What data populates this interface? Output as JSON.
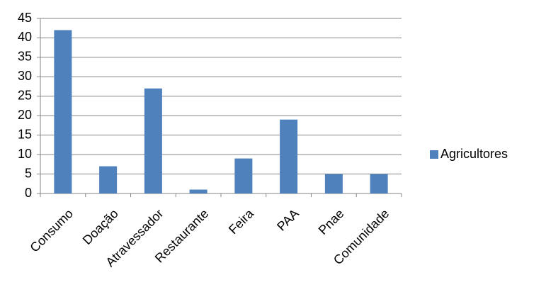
{
  "chart_data": {
    "type": "bar",
    "categories": [
      "Consumo",
      "Doação",
      "Atravessador",
      "Restaurante",
      "Feira",
      "PAA",
      "Pnae",
      "Comunidade"
    ],
    "series": [
      {
        "name": "Agricultores",
        "color": "#4f81bd",
        "values": [
          42,
          7,
          27,
          1,
          9,
          19,
          5,
          5
        ]
      }
    ],
    "ylim": [
      0,
      45
    ],
    "yticks": [
      0,
      5,
      10,
      15,
      20,
      25,
      30,
      35,
      40,
      45
    ],
    "grid": true,
    "legend": "right"
  }
}
